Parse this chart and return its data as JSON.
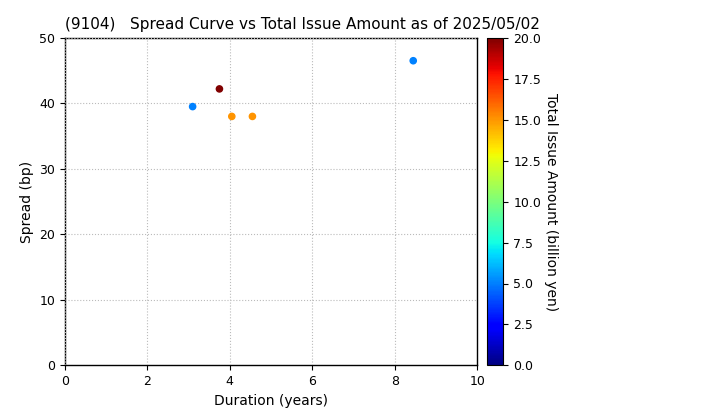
{
  "title": "(9104)   Spread Curve vs Total Issue Amount as of 2025/05/02",
  "xlabel": "Duration (years)",
  "ylabel": "Spread (bp)",
  "colorbar_label": "Total Issue Amount (billion yen)",
  "xlim": [
    0,
    10
  ],
  "ylim": [
    0,
    50
  ],
  "xticks": [
    0,
    2,
    4,
    6,
    8,
    10
  ],
  "yticks": [
    0,
    10,
    20,
    30,
    40,
    50
  ],
  "points": [
    {
      "duration": 3.1,
      "spread": 39.5,
      "amount": 5.0
    },
    {
      "duration": 3.75,
      "spread": 42.2,
      "amount": 20.0
    },
    {
      "duration": 4.05,
      "spread": 38.0,
      "amount": 15.0
    },
    {
      "duration": 4.55,
      "spread": 38.0,
      "amount": 15.0
    },
    {
      "duration": 8.45,
      "spread": 46.5,
      "amount": 5.0
    }
  ],
  "cmap": "jet",
  "clim": [
    0.0,
    20.0
  ],
  "cticks": [
    0.0,
    2.5,
    5.0,
    7.5,
    10.0,
    12.5,
    15.0,
    17.5,
    20.0
  ],
  "marker_size": 20,
  "grid_style": "dotted",
  "grid_color": "#bbbbbb",
  "bg_color": "white",
  "title_fontsize": 11,
  "label_fontsize": 10,
  "tick_fontsize": 9
}
